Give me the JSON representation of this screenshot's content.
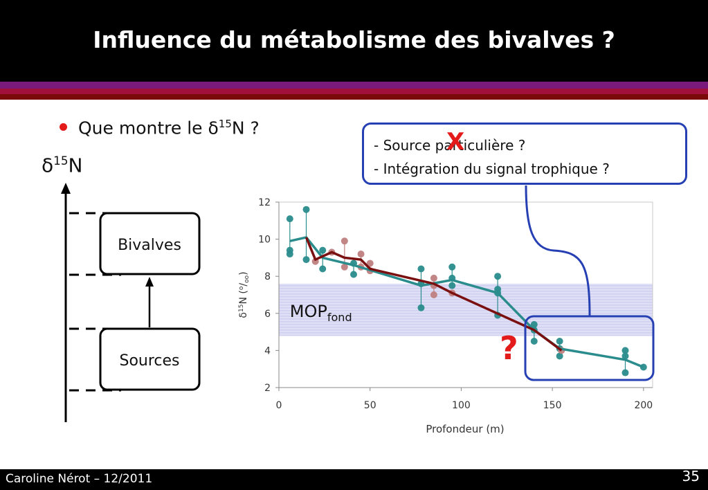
{
  "slide": {
    "title": "Influence du métabolisme des bivalves ?",
    "bullet": {
      "prefix": "Que montre le ",
      "delta": "δ",
      "sup": "15",
      "suffix": "N ?"
    },
    "axis_label": {
      "delta": "δ",
      "sup": "15",
      "suffix": "N"
    },
    "bubble_lines": [
      "- Source particulière ?",
      "- Intégration du signal trophique ?"
    ],
    "cross_mark": "X",
    "question_mark": "?",
    "diagram": {
      "top_box": "Bivalves",
      "bottom_box": "Sources"
    },
    "footer": {
      "author": "Caroline Nérot – 12/2011",
      "page": "35"
    },
    "colors": {
      "accent_red": "#e31b1b",
      "box_blue": "#2640b3",
      "teal": "#2a8c8c",
      "dark_red": "#7a1010",
      "pink": "#c08080",
      "band": "#dcdcf5"
    }
  },
  "chart_data": {
    "type": "scatter",
    "xlabel": "Profondeur (m)",
    "ylabel": {
      "delta": "δ",
      "sup": "15",
      "mid": "N (",
      "o1": "o",
      "slash": "/",
      "o2": "oo",
      "end": ")"
    },
    "xlim": [
      0,
      205
    ],
    "ylim": [
      2,
      12
    ],
    "xticks": [
      0,
      50,
      100,
      150,
      200
    ],
    "yticks": [
      2,
      4,
      6,
      8,
      10,
      12
    ],
    "band": {
      "y_min": 4.8,
      "y_max": 7.6,
      "label": "MOP",
      "label_sub": "fond"
    },
    "series": [
      {
        "color": "#2a8c8c",
        "points": [
          [
            6,
            11.1
          ],
          [
            6,
            9.4
          ],
          [
            6,
            9.2
          ],
          [
            15,
            11.6
          ],
          [
            15,
            8.9
          ],
          [
            24,
            9.4
          ],
          [
            24,
            8.4
          ],
          [
            41,
            8.1
          ],
          [
            41,
            8.7
          ],
          [
            78,
            8.4
          ],
          [
            78,
            6.3
          ],
          [
            78,
            7.6
          ],
          [
            95,
            8.5
          ],
          [
            95,
            7.9
          ],
          [
            95,
            7.5
          ],
          [
            120,
            8.0
          ],
          [
            120,
            7.3
          ],
          [
            120,
            7.1
          ],
          [
            120,
            5.9
          ],
          [
            140,
            5.4
          ],
          [
            140,
            5.1
          ],
          [
            140,
            4.5
          ],
          [
            154,
            4.5
          ],
          [
            154,
            4.1
          ],
          [
            154,
            3.7
          ],
          [
            190,
            4.0
          ],
          [
            190,
            3.7
          ],
          [
            190,
            2.8
          ],
          [
            200,
            3.1
          ]
        ],
        "mean_line": [
          [
            6,
            9.9
          ],
          [
            15,
            10.1
          ],
          [
            24,
            9.0
          ],
          [
            41,
            8.6
          ],
          [
            78,
            7.5
          ],
          [
            95,
            7.8
          ],
          [
            120,
            7.1
          ],
          [
            140,
            5.1
          ],
          [
            154,
            4.1
          ],
          [
            190,
            3.5
          ],
          [
            200,
            3.1
          ]
        ]
      },
      {
        "color": "#c08080",
        "points": [
          [
            20,
            8.8
          ],
          [
            29,
            9.3
          ],
          [
            36,
            9.9
          ],
          [
            36,
            8.5
          ],
          [
            45,
            9.2
          ],
          [
            45,
            8.5
          ],
          [
            50,
            8.7
          ],
          [
            50,
            8.3
          ],
          [
            85,
            7.9
          ],
          [
            85,
            7.5
          ],
          [
            85,
            7.0
          ],
          [
            95,
            7.1
          ],
          [
            155,
            4.0
          ]
        ],
        "mean_line": [
          [
            15,
            10.1
          ],
          [
            20,
            8.9
          ],
          [
            29,
            9.3
          ],
          [
            36,
            9.0
          ],
          [
            45,
            8.9
          ],
          [
            50,
            8.4
          ],
          [
            85,
            7.6
          ],
          [
            95,
            7.1
          ],
          [
            140,
            5.1
          ],
          [
            155,
            4.0
          ]
        ],
        "mean_color": "#7a1010"
      }
    ]
  }
}
